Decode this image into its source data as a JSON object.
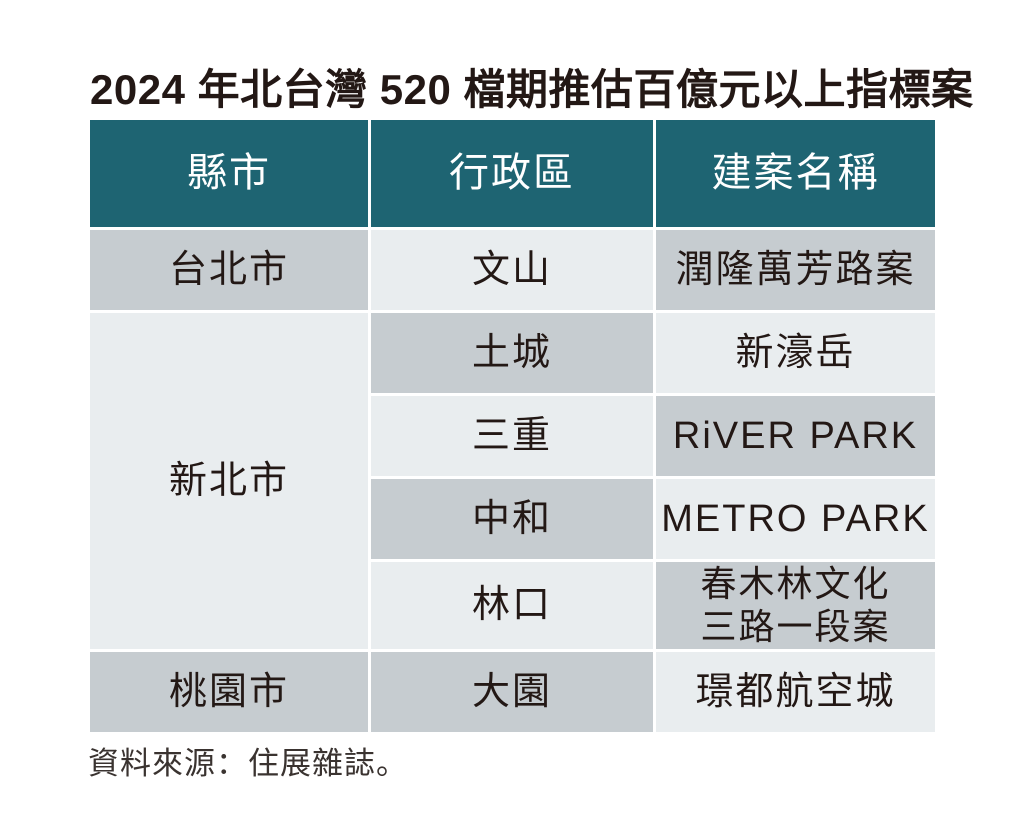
{
  "title": "2024 年北台灣 520 檔期推估百億元以上指標案",
  "source": "資料來源：住展雜誌。",
  "colors": {
    "header_bg": "#1e6472",
    "header_text": "#ffffff",
    "cell_grey": "#c6ccd0",
    "cell_light": "#e9edef",
    "text_dark": "#231815",
    "source_text": "#3a3330"
  },
  "chart_data": {
    "type": "table",
    "title": "2024 年北台灣 520 檔期推估百億元以上指標案",
    "columns": [
      "縣市",
      "行政區",
      "建案名稱"
    ],
    "rows": [
      [
        "台北市",
        "文山",
        "潤隆萬芳路案"
      ],
      [
        "新北市",
        "土城",
        "新濠岳"
      ],
      [
        "新北市",
        "三重",
        "RiVER PARK"
      ],
      [
        "新北市",
        "中和",
        "METRO PARK"
      ],
      [
        "新北市",
        "林口",
        "春木林文化三路一段案"
      ],
      [
        "桃園市",
        "大園",
        "璟都航空城"
      ]
    ],
    "source": "資料來源：住展雜誌。"
  },
  "display": {
    "headers": [
      "縣市",
      "行政區",
      "建案名稱"
    ],
    "cities": [
      "台北市",
      "新北市",
      "桃園市"
    ],
    "districts": [
      "文山",
      "土城",
      "三重",
      "中和",
      "林口",
      "大園"
    ],
    "projects": [
      "潤隆萬芳路案",
      "新濠岳",
      "RiVER PARK",
      "METRO PARK",
      "春木林文化\n三路一段案",
      "璟都航空城"
    ]
  }
}
